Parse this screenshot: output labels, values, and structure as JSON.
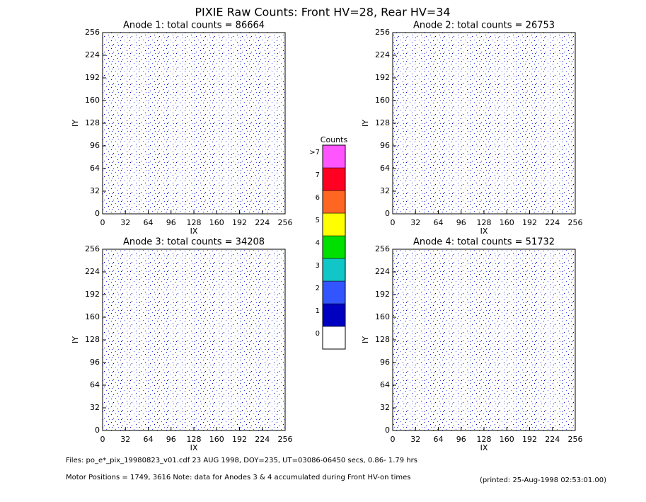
{
  "title": "PIXIE Raw Counts:  Front HV=28, Rear HV=34",
  "panels": [
    {
      "title": "Anode 1: total counts = 86664",
      "xlabel": "IX",
      "ylabel": "IY",
      "xlim": [
        0,
        256
      ],
      "ylim": [
        0,
        256
      ],
      "xticks": [
        0,
        32,
        64,
        96,
        128,
        160,
        192,
        224,
        256
      ],
      "yticks": [
        0,
        32,
        64,
        96,
        128,
        160,
        192,
        224,
        256
      ]
    },
    {
      "title": "Anode 2: total counts = 26753",
      "xlabel": "IX",
      "ylabel": "IY",
      "xlim": [
        0,
        256
      ],
      "ylim": [
        0,
        256
      ],
      "xticks": [
        0,
        32,
        64,
        96,
        128,
        160,
        192,
        224,
        256
      ],
      "yticks": [
        0,
        32,
        64,
        96,
        128,
        160,
        192,
        224,
        256
      ]
    },
    {
      "title": "Anode 3: total counts = 34208",
      "xlabel": "IX",
      "ylabel": "IY",
      "xlim": [
        0,
        256
      ],
      "ylim": [
        0,
        256
      ],
      "xticks": [
        0,
        32,
        64,
        96,
        128,
        160,
        192,
        224,
        256
      ],
      "yticks": [
        0,
        32,
        64,
        96,
        128,
        160,
        192,
        224,
        256
      ]
    },
    {
      "title": "Anode 4: total counts = 51732",
      "xlabel": "IX",
      "ylabel": "IY",
      "xlim": [
        0,
        256
      ],
      "ylim": [
        0,
        256
      ],
      "xticks": [
        0,
        32,
        64,
        96,
        128,
        160,
        192,
        224,
        256
      ],
      "yticks": [
        0,
        32,
        64,
        96,
        128,
        160,
        192,
        224,
        256
      ]
    }
  ],
  "colorbar": {
    "title": "Counts",
    "levels": [
      {
        "label": "0",
        "color": "#ffffff"
      },
      {
        "label": "1",
        "color": "#0000c0"
      },
      {
        "label": "2",
        "color": "#3355ff"
      },
      {
        "label": "3",
        "color": "#11c6c6"
      },
      {
        "label": "4",
        "color": "#00e000"
      },
      {
        "label": "5",
        "color": "#ffff00"
      },
      {
        "label": "6",
        "color": "#ff6622"
      },
      {
        "label": "7",
        "color": "#ff0022"
      },
      {
        "label": ">7",
        "color": "#ff55ff"
      }
    ]
  },
  "footer": {
    "files": "Files: po_e*_pix_19980823_v01.cdf    23 AUG 1998, DOY=235, UT=03086-06450 secs,  0.86- 1.79 hrs",
    "motor": "Motor Positions = 1749, 3616   Note: data for Anodes 3 & 4 accumulated during Front HV-on times",
    "printed": "(printed: 25-Aug-1998 02:53:01.00)"
  }
}
